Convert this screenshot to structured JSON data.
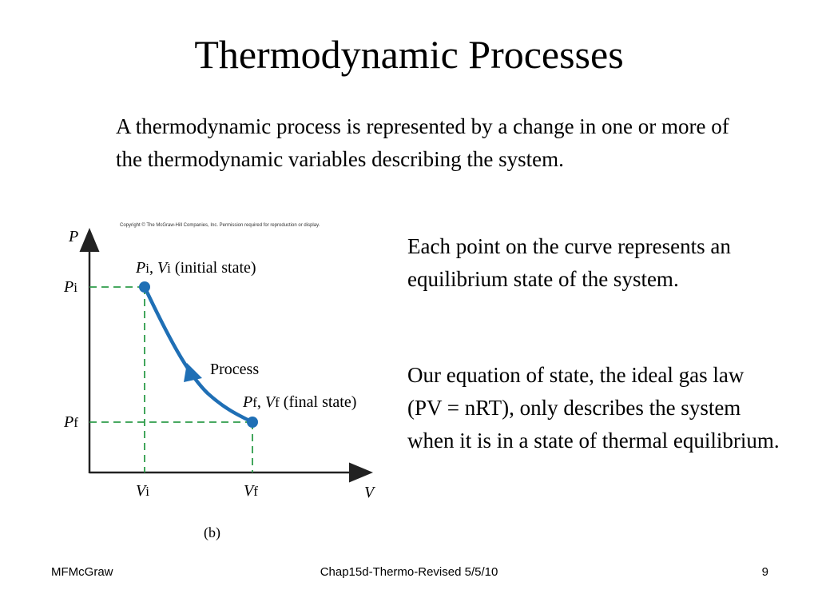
{
  "slide": {
    "title": "Thermodynamic Processes",
    "intro": "A thermodynamic process is represented by a change in one or more of the thermodynamic variables describing the system.",
    "point1": "Each point on the curve represents an equilibrium state of the system.",
    "point2": "Our equation of state, the ideal gas law (PV = nRT), only describes the system when it is in a state of thermal equilibrium."
  },
  "figure": {
    "copyright": "Copyright © The McGraw-Hill Companies, Inc. Permission required for reproduction or display.",
    "y_axis": "P",
    "x_axis": "V",
    "p_i": {
      "sym": "P",
      "sub": "i"
    },
    "p_f": {
      "sym": "P",
      "sub": "f"
    },
    "v_i": {
      "sym": "V",
      "sub": "i"
    },
    "v_f": {
      "sym": "V",
      "sub": "f"
    },
    "initial_label": {
      "p": "P",
      "p_sub": "i",
      "v": "V",
      "v_sub": "i",
      "note": "(initial state)"
    },
    "final_label": {
      "p": "P",
      "p_sub": "f",
      "v": "V",
      "v_sub": "f",
      "note": "(final state)"
    },
    "process_label": "Process",
    "caption": "(b)",
    "colors": {
      "curve": "#1f6fb5",
      "dashes": "#2e9c4a",
      "axes": "#222222"
    }
  },
  "footer": {
    "left": "MFMcGraw",
    "center": "Chap15d-Thermo-Revised 5/5/10",
    "right": "9"
  }
}
